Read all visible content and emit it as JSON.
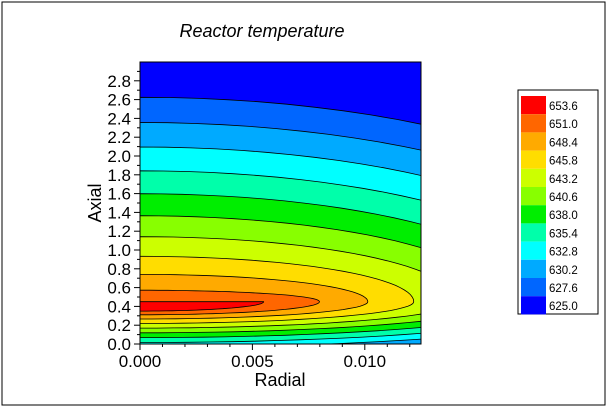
{
  "chart_data": {
    "type": "heatmap",
    "subtype": "filled-contour",
    "title": "Reactor temperature",
    "xlabel": "Radial",
    "ylabel": "Axial",
    "xlim": [
      0.0,
      0.0125
    ],
    "ylim": [
      0.0,
      3.0
    ],
    "x_ticks": [
      "0.000",
      "0.005",
      "0.010"
    ],
    "y_ticks": [
      "0.0",
      "0.2",
      "0.4",
      "0.6",
      "0.8",
      "1.0",
      "1.2",
      "1.4",
      "1.6",
      "1.8",
      "2.0",
      "2.2",
      "2.4",
      "2.6",
      "2.8"
    ],
    "grid": false,
    "legend_position": "right",
    "levels": [
      "653.6",
      "651.0",
      "648.4",
      "645.8",
      "643.2",
      "640.6",
      "638.0",
      "635.4",
      "632.8",
      "630.2",
      "627.6",
      "625.0"
    ],
    "level_colors": [
      "#ff0000",
      "#ff6600",
      "#ffaa00",
      "#ffdd00",
      "#ccff00",
      "#88ff00",
      "#00ee00",
      "#00ffaa",
      "#00ffff",
      "#00aaff",
      "#0066ff",
      "#0000ff"
    ],
    "hotspot": {
      "x": 0.0,
      "y": 0.45,
      "value": 653.6
    }
  }
}
